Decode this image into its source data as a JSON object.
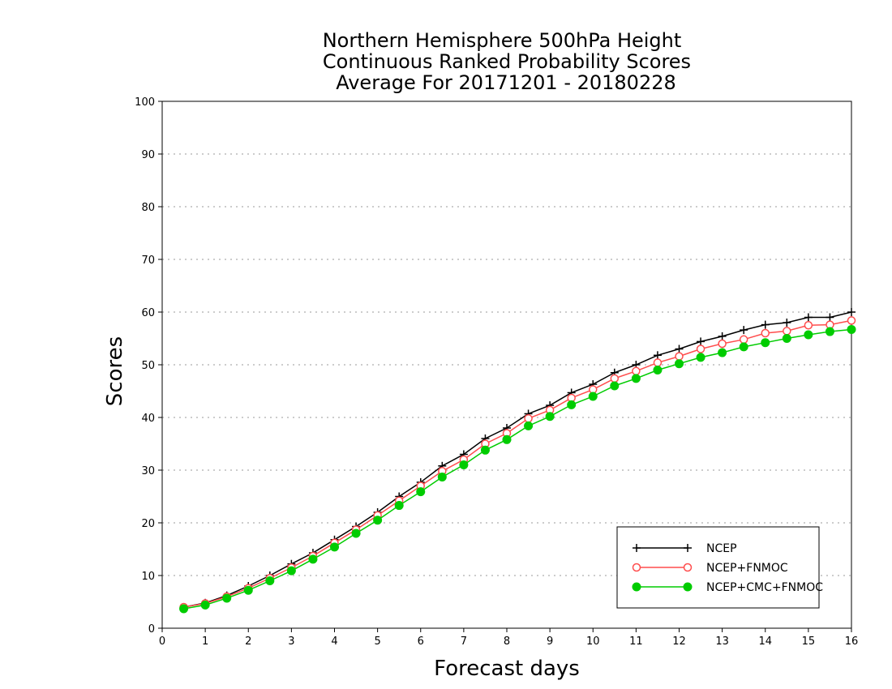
{
  "chart_data": {
    "type": "line",
    "title": [
      "Northern Hemisphere 500hPa Height",
      "Continuous Ranked Probability Scores",
      "Average For 20171201 - 20180228"
    ],
    "xlabel": "Forecast days",
    "ylabel": "Scores",
    "xlim": [
      0,
      16
    ],
    "ylim": [
      0,
      100
    ],
    "xticks": [
      0,
      1,
      2,
      3,
      4,
      5,
      6,
      7,
      8,
      9,
      10,
      11,
      12,
      13,
      14,
      15,
      16
    ],
    "yticks": [
      0,
      10,
      20,
      30,
      40,
      50,
      60,
      70,
      80,
      90,
      100
    ],
    "grid": "horizontal dotted",
    "legend_position": "bottom-right",
    "x": [
      0.5,
      1.0,
      1.5,
      2.0,
      2.5,
      3.0,
      3.5,
      4.0,
      4.5,
      5.0,
      5.5,
      6.0,
      6.5,
      7.0,
      7.5,
      8.0,
      8.5,
      9.0,
      9.5,
      10.0,
      10.5,
      11.0,
      11.5,
      12.0,
      12.5,
      13.0,
      13.5,
      14.0,
      14.5,
      15.0,
      15.5,
      16.0
    ],
    "series": [
      {
        "name": "NCEP",
        "color": "#000000",
        "marker": "plus",
        "values": [
          4.0,
          4.8,
          6.2,
          8.0,
          10.0,
          12.2,
          14.3,
          16.8,
          19.3,
          22.0,
          25.0,
          27.7,
          30.8,
          33.0,
          36.0,
          38.0,
          40.7,
          42.3,
          44.7,
          46.3,
          48.5,
          50.0,
          51.8,
          53.0,
          54.4,
          55.4,
          56.6,
          57.6,
          58.0,
          59.0,
          59.0,
          60.0
        ]
      },
      {
        "name": "NCEP+FNMOC",
        "color": "#ff4d4d",
        "marker": "open-circle",
        "values": [
          4.0,
          4.7,
          6.0,
          7.6,
          9.5,
          11.5,
          13.7,
          16.2,
          18.7,
          21.4,
          24.2,
          27.0,
          29.8,
          32.0,
          35.0,
          37.0,
          39.8,
          41.4,
          43.7,
          45.3,
          47.4,
          48.8,
          50.4,
          51.6,
          53.0,
          54.0,
          54.8,
          56.0,
          56.4,
          57.5,
          57.6,
          58.4
        ]
      },
      {
        "name": "NCEP+CMC+FNMOC",
        "color": "#00cc00",
        "marker": "filled-circle",
        "values": [
          3.7,
          4.4,
          5.7,
          7.2,
          9.0,
          10.9,
          13.1,
          15.4,
          18.0,
          20.5,
          23.3,
          25.9,
          28.7,
          31.0,
          33.8,
          35.8,
          38.4,
          40.2,
          42.4,
          44.0,
          46.0,
          47.4,
          49.0,
          50.2,
          51.4,
          52.3,
          53.4,
          54.2,
          55.0,
          55.7,
          56.3,
          56.7
        ]
      }
    ]
  }
}
